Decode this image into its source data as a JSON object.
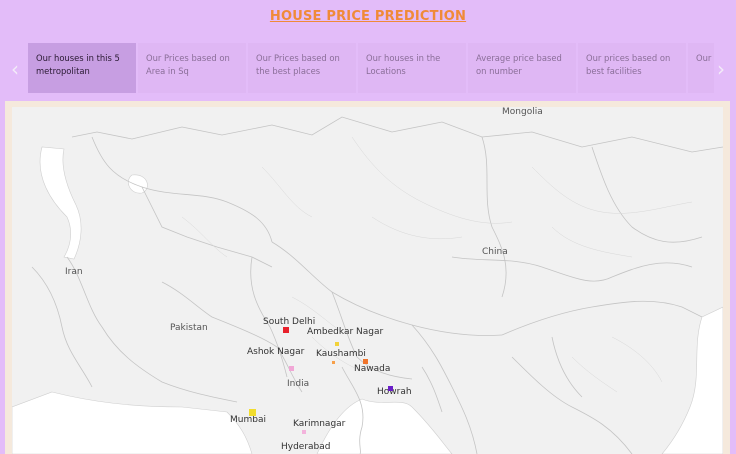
{
  "header": {
    "title": "HOUSE PRICE PREDICTION"
  },
  "nav": {
    "prev": "‹",
    "next": "›"
  },
  "tabs": [
    {
      "label": "Our houses in this 5 metropolitan",
      "active": true
    },
    {
      "label": "Our Prices based on Area in Sq"
    },
    {
      "label": "Our Prices based on the best places"
    },
    {
      "label": "Our houses in the Locations"
    },
    {
      "label": "Average price based on number"
    },
    {
      "label": "Our prices based on best facilities"
    },
    {
      "label": "Our houses based"
    }
  ],
  "map": {
    "countries": [
      "Mongolia",
      "China",
      "Iran",
      "Pakistan",
      "India"
    ],
    "cities": [
      {
        "name": "South Delhi",
        "color": "#e8212b"
      },
      {
        "name": "Ambedkar Nagar",
        "color": "#f2d23a"
      },
      {
        "name": "Ashok Nagar",
        "color": "#f1a7d6"
      },
      {
        "name": "Kaushambi",
        "color": "#f7a04a"
      },
      {
        "name": "Nawada",
        "color": "#f0742b"
      },
      {
        "name": "Howrah",
        "color": "#6a1fc8"
      },
      {
        "name": "Mumbai",
        "color": "#f2dd2e"
      },
      {
        "name": "Karimnagar",
        "color": "#f3b3dc"
      },
      {
        "name": "Hyderabad",
        "color": "#f3b3dc"
      }
    ]
  }
}
